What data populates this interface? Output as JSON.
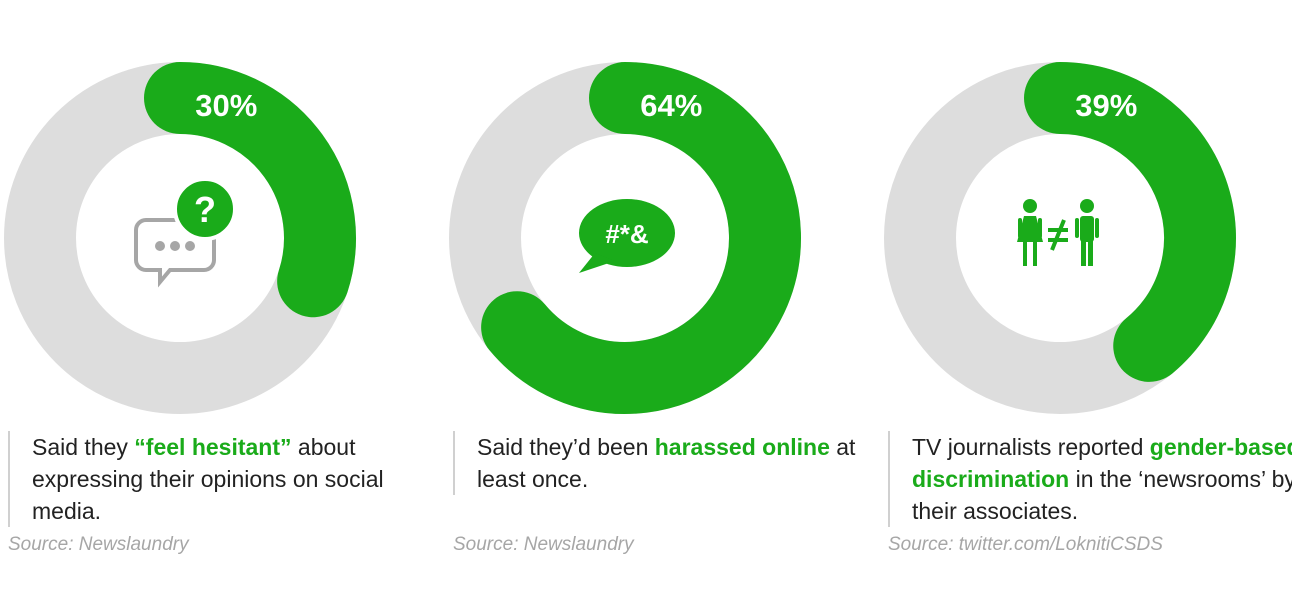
{
  "colors": {
    "accent": "#1aab1a",
    "track": "#dddddd",
    "icon_gray": "#a6a6a6"
  },
  "chart_data": [
    {
      "type": "pie",
      "values": [
        30
      ],
      "label": "30%",
      "icon": "chat-question-icon",
      "question_glyph": "?",
      "description": {
        "before": "Said they ",
        "highlight": "“feel hesitant”",
        "after": " about expressing their opinions on social media."
      },
      "source": {
        "prefix": "Source",
        "text": ": Newslaundry"
      }
    },
    {
      "type": "pie",
      "values": [
        64
      ],
      "label": "64%",
      "icon": "speech-bubble-icon",
      "bubble_text": "#*&",
      "description": {
        "before": "Said they’d been ",
        "highlight": "harassed online",
        "after": " at least once."
      },
      "source": {
        "prefix": "Source",
        "text": ": Newslaundry"
      }
    },
    {
      "type": "pie",
      "values": [
        39
      ],
      "label": "39%",
      "icon": "gender-inequality-icon",
      "description": {
        "before": "TV journalists reported ",
        "highlight": "gender-based discrimination",
        "after": " in the ‘newsrooms’ by their associates."
      },
      "source": {
        "prefix": "Source",
        "text": ": twitter.com/LoknitiCSDS"
      }
    }
  ]
}
